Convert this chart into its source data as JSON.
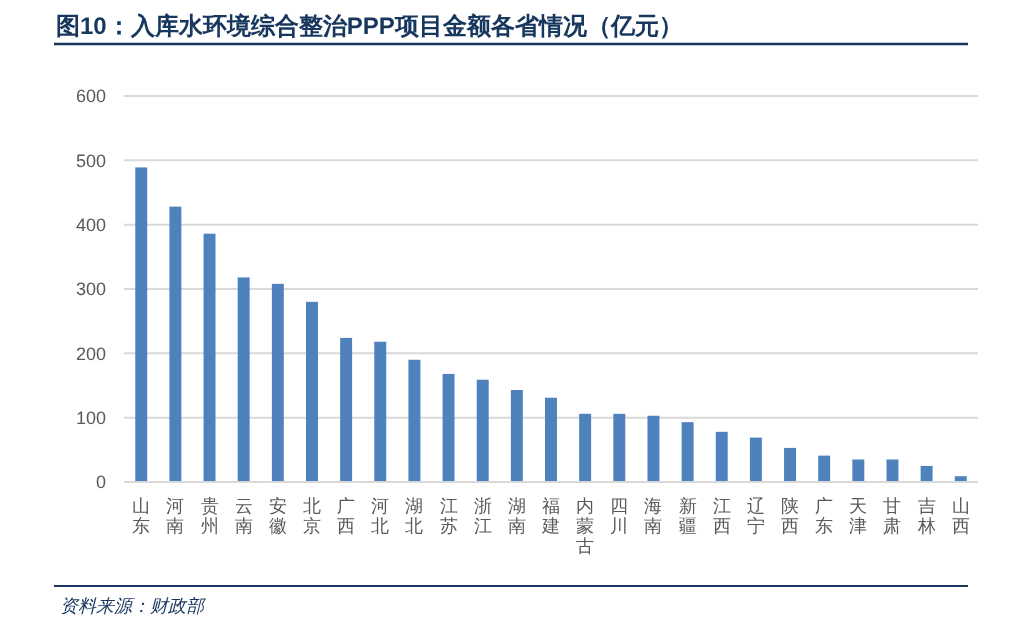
{
  "chart_data": {
    "type": "bar",
    "title": "图10：入库水环境综合整治PPP项目金额各省情况（亿元）",
    "categories": [
      "山东",
      "河南",
      "贵州",
      "云南",
      "安徽",
      "北京",
      "广西",
      "河北",
      "湖北",
      "江苏",
      "浙江",
      "湖南",
      "福建",
      "内蒙古",
      "四川",
      "海南",
      "新疆",
      "江西",
      "辽宁",
      "陕西",
      "广东",
      "天津",
      "甘肃",
      "吉林",
      "山西"
    ],
    "values": [
      489,
      428,
      386,
      318,
      308,
      280,
      224,
      218,
      190,
      168,
      159,
      143,
      131,
      106,
      106,
      103,
      93,
      78,
      69,
      53,
      41,
      35,
      35,
      25,
      9
    ],
    "color": "#4f81bd",
    "ylim": [
      0,
      600
    ],
    "yticks": [
      0,
      100,
      200,
      300,
      400,
      500,
      600
    ],
    "grid": "y",
    "annotations": [
      "资料来源：财政部"
    ]
  }
}
